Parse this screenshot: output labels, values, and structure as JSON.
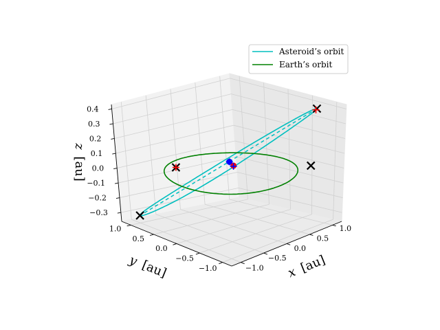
{
  "chart_data": {
    "type": "line",
    "projection": "3d",
    "title": "",
    "xlabel": "$x$ [au]",
    "ylabel": "$y$ [au]",
    "zlabel": "$z$ [au]",
    "xlim": [
      -1.2,
      1.2
    ],
    "ylim": [
      -1.2,
      1.2
    ],
    "zlim": [
      -0.36,
      0.43
    ],
    "xticks": [
      "−1.0",
      "−0.5",
      "0.0",
      "0.5",
      "1.0"
    ],
    "yticks": [
      "−1.0",
      "−0.5",
      "0.0",
      "0.5",
      "1.0"
    ],
    "zticks": [
      "−0.3",
      "−0.2",
      "−0.1",
      "0.0",
      "0.1",
      "0.2",
      "0.3",
      "0.4"
    ],
    "grid": true,
    "legend_position": "top-right",
    "series": [
      {
        "name": "Asteroid’s orbit",
        "color": "#00bfbf",
        "shape": "ellipse",
        "center": [
          -0.05,
          0.05,
          0.05
        ],
        "semi_axis_a": [
          0.95,
          -0.95,
          0.36
        ],
        "semi_axis_b": [
          -0.45,
          -0.45,
          0.12
        ]
      },
      {
        "name": "Earth’s orbit",
        "color": "#008000",
        "shape": "circle",
        "center": [
          0,
          0,
          0
        ],
        "radius": 1.0
      }
    ],
    "lines": [
      {
        "style": "dashed",
        "color": "#00bfbf",
        "from": [
          0.9,
          -0.9,
          0.41
        ],
        "to": [
          -1.0,
          1.0,
          -0.31
        ]
      },
      {
        "style": "dashed",
        "color": "#0000ff",
        "from": [
          -0.5,
          -0.5,
          0.17
        ],
        "to": [
          0.6,
          0.6,
          -0.07
        ]
      }
    ],
    "points": [
      {
        "marker": "x",
        "color": "#000000",
        "xyz": [
          0.9,
          -0.9,
          0.41
        ]
      },
      {
        "marker": "x",
        "color": "#000000",
        "xyz": [
          -1.0,
          1.0,
          -0.31
        ]
      },
      {
        "marker": "x",
        "color": "#000000",
        "xyz": [
          0.6,
          -1.1,
          0.08
        ]
      },
      {
        "marker": "x",
        "color": "#000000",
        "xyz": [
          -0.2,
          1.0,
          -0.05
        ]
      },
      {
        "marker": "o",
        "color": "#ff0000",
        "xyz": [
          0.62,
          0.62,
          -0.07
        ]
      },
      {
        "marker": "o",
        "color": "#0000ff",
        "xyz": [
          -0.5,
          -0.5,
          0.17
        ]
      },
      {
        "marker": "+",
        "color": "#ff0000",
        "xyz": [
          0.9,
          -0.88,
          0.4
        ]
      },
      {
        "marker": "+",
        "color": "#ff0000",
        "xyz": [
          -0.2,
          1.0,
          -0.05
        ]
      },
      {
        "marker": "+",
        "color": "#0000ff",
        "xyz": [
          -0.5,
          -0.5,
          0.17
        ]
      },
      {
        "marker": "+",
        "color": "#0000ff",
        "xyz": [
          0.6,
          0.6,
          -0.07
        ]
      }
    ]
  },
  "legend": {
    "items": [
      {
        "label": "Asteroid’s orbit",
        "color": "#00bfbf"
      },
      {
        "label": "Earth’s orbit",
        "color": "#008000"
      }
    ]
  },
  "axis_text": {
    "xlabel_var": "x",
    "xlabel_unit": "[au]",
    "ylabel_var": "y",
    "ylabel_unit": "[au]",
    "zlabel_var": "z",
    "zlabel_unit": "[au]"
  }
}
